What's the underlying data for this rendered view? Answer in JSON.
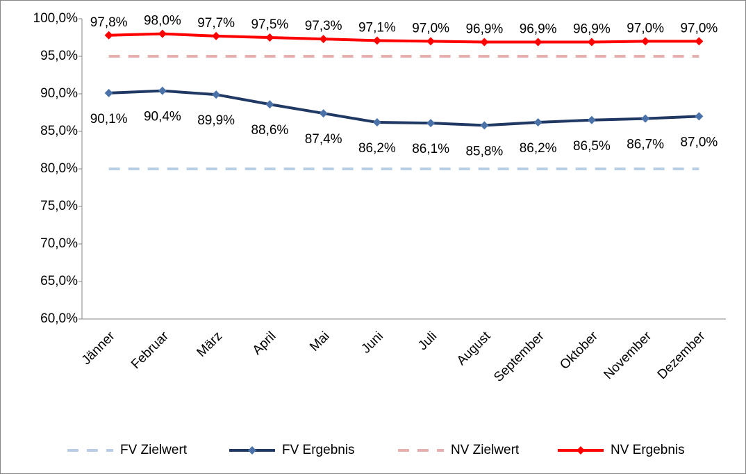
{
  "chart_data": {
    "type": "line",
    "categories": [
      "Jänner",
      "Februar",
      "März",
      "April",
      "Mai",
      "Juni",
      "Juli",
      "August",
      "September",
      "Oktober",
      "November",
      "Dezember"
    ],
    "ylim": [
      60,
      100
    ],
    "yticks": [
      {
        "value": 60,
        "label": "60,0%"
      },
      {
        "value": 65,
        "label": "65,0%"
      },
      {
        "value": 70,
        "label": "70,0%"
      },
      {
        "value": 75,
        "label": "75,0%"
      },
      {
        "value": 80,
        "label": "80,0%"
      },
      {
        "value": 85,
        "label": "85,0%"
      },
      {
        "value": 90,
        "label": "90,0%"
      },
      {
        "value": 95,
        "label": "95,0%"
      },
      {
        "value": 100,
        "label": "100,0%"
      }
    ],
    "legend": "bottom",
    "series": [
      {
        "name": "FV Zielwert",
        "color": "#b9cde5",
        "dashed": true,
        "values": [
          80,
          80,
          80,
          80,
          80,
          80,
          80,
          80,
          80,
          80,
          80,
          80
        ]
      },
      {
        "name": "FV Ergebnis",
        "color": "#1f3864",
        "marker": "diamond",
        "marker_color": "#4a72a8",
        "label_position": "below",
        "values": [
          90.1,
          90.4,
          89.9,
          88.6,
          87.4,
          86.2,
          86.1,
          85.8,
          86.2,
          86.5,
          86.7,
          87.0
        ],
        "value_labels": [
          "90,1%",
          "90,4%",
          "89,9%",
          "88,6%",
          "87,4%",
          "86,2%",
          "86,1%",
          "85,8%",
          "86,2%",
          "86,5%",
          "86,7%",
          "87,0%"
        ]
      },
      {
        "name": "NV Zielwert",
        "color": "#e6b0ae",
        "dashed": true,
        "values": [
          95,
          95,
          95,
          95,
          95,
          95,
          95,
          95,
          95,
          95,
          95,
          95
        ]
      },
      {
        "name": "NV Ergebnis",
        "color": "#ff0000",
        "marker": "diamond",
        "marker_color": "#ff0000",
        "label_position": "above",
        "values": [
          97.8,
          98.0,
          97.7,
          97.5,
          97.3,
          97.1,
          97.0,
          96.9,
          96.9,
          96.9,
          97.0,
          97.0
        ],
        "value_labels": [
          "97,8%",
          "98,0%",
          "97,7%",
          "97,5%",
          "97,3%",
          "97,1%",
          "97,0%",
          "96,9%",
          "96,9%",
          "96,9%",
          "97,0%",
          "97,0%"
        ]
      }
    ]
  }
}
